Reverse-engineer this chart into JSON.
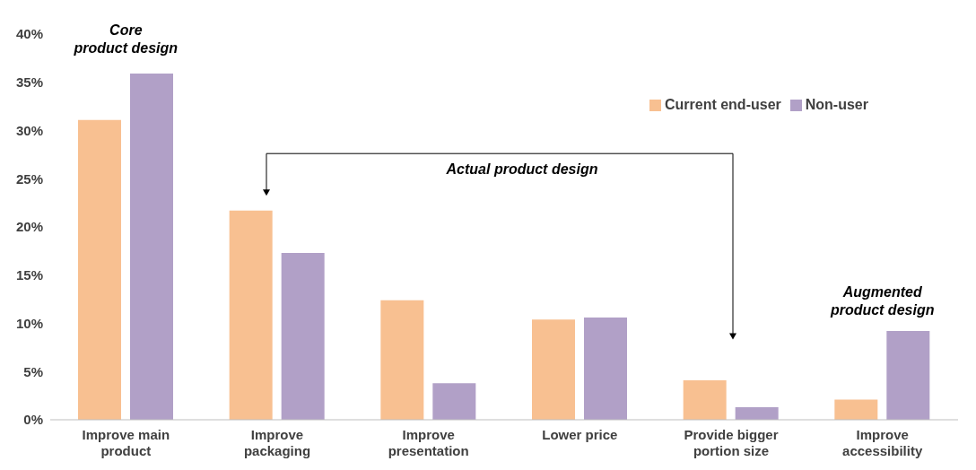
{
  "chart_data": {
    "type": "bar",
    "categories": [
      "Improve main product",
      "Improve packaging",
      "Improve presentation",
      "Lower price",
      "Provide bigger portion size",
      "Improve accessibility"
    ],
    "series": [
      {
        "name": "Current end-user",
        "color": "#f8c091",
        "values": [
          31.1,
          21.7,
          12.4,
          10.4,
          4.1,
          2.1
        ]
      },
      {
        "name": "Non-user",
        "color": "#b1a0c7",
        "values": [
          35.9,
          17.3,
          3.8,
          10.6,
          1.3,
          9.2
        ]
      }
    ],
    "ylim": [
      0,
      40
    ],
    "yticks": [
      {
        "value": 0,
        "label": "0%"
      },
      {
        "value": 5,
        "label": "5%"
      },
      {
        "value": 10,
        "label": "10%"
      },
      {
        "value": 15,
        "label": "15%"
      },
      {
        "value": 20,
        "label": "20%"
      },
      {
        "value": 25,
        "label": "25%"
      },
      {
        "value": 30,
        "label": "30%"
      },
      {
        "value": 35,
        "label": "35%"
      },
      {
        "value": 40,
        "label": "40%"
      }
    ],
    "grid": false,
    "legend": "top right",
    "annotations": [
      "Core product design",
      "Actual product design",
      "Augmented product design"
    ]
  }
}
